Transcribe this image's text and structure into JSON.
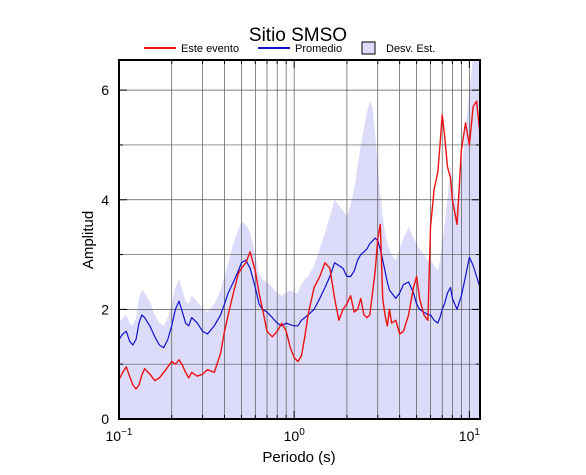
{
  "chart_data": {
    "type": "line",
    "title": "Sitio SMSO",
    "xlabel": "Periodo (s)",
    "ylabel": "Amplitud",
    "xscale": "log",
    "xlim": [
      0.1,
      11.5
    ],
    "ylim": [
      0,
      6.55
    ],
    "grid": true,
    "legend_position": "top",
    "x_tick_labels": [
      {
        "value": 0.1,
        "base": "10",
        "exp": "−1"
      },
      {
        "value": 1,
        "base": "10",
        "exp": "0"
      },
      {
        "value": 10,
        "base": "10",
        "exp": "1"
      }
    ],
    "y_ticks": [
      0,
      2,
      4,
      6
    ],
    "legend": {
      "este_evento": "Este evento",
      "promedio": "Promedio",
      "desv_est": "Desv. Est."
    },
    "colors": {
      "este_evento": "#ee1111",
      "promedio": "#1111cc",
      "desv_band": "#dcdcfa"
    },
    "series": [
      {
        "name": "Este evento",
        "x": [
          0.1,
          0.105,
          0.11,
          0.115,
          0.12,
          0.125,
          0.13,
          0.135,
          0.14,
          0.15,
          0.16,
          0.17,
          0.18,
          0.19,
          0.2,
          0.21,
          0.22,
          0.23,
          0.24,
          0.25,
          0.26,
          0.28,
          0.3,
          0.32,
          0.35,
          0.38,
          0.4,
          0.42,
          0.45,
          0.48,
          0.5,
          0.53,
          0.56,
          0.6,
          0.63,
          0.66,
          0.7,
          0.75,
          0.8,
          0.85,
          0.9,
          0.95,
          1.0,
          1.05,
          1.1,
          1.15,
          1.2,
          1.3,
          1.4,
          1.5,
          1.6,
          1.7,
          1.8,
          1.9,
          2.0,
          2.1,
          2.2,
          2.3,
          2.4,
          2.5,
          2.6,
          2.7,
          2.8,
          2.9,
          3.0,
          3.1,
          3.2,
          3.3,
          3.4,
          3.5,
          3.6,
          3.8,
          4.0,
          4.2,
          4.5,
          4.8,
          5.0,
          5.2,
          5.5,
          5.8,
          6.0,
          6.3,
          6.6,
          6.8,
          7.0,
          7.2,
          7.5,
          7.8,
          8.0,
          8.5,
          9.0,
          9.5,
          10.0,
          10.5,
          11.0,
          11.5
        ],
        "y": [
          0.72,
          0.85,
          0.95,
          0.78,
          0.62,
          0.55,
          0.62,
          0.8,
          0.92,
          0.82,
          0.7,
          0.75,
          0.85,
          0.95,
          1.05,
          1.0,
          1.08,
          0.98,
          0.85,
          0.75,
          0.85,
          0.78,
          0.82,
          0.9,
          0.85,
          1.2,
          1.6,
          1.9,
          2.3,
          2.65,
          2.75,
          2.85,
          3.05,
          2.7,
          2.3,
          2.0,
          1.6,
          1.5,
          1.6,
          1.75,
          1.6,
          1.3,
          1.12,
          1.05,
          1.15,
          1.5,
          1.9,
          2.4,
          2.6,
          2.85,
          2.75,
          2.2,
          1.8,
          2.0,
          2.1,
          2.25,
          1.95,
          2.0,
          2.2,
          1.9,
          1.85,
          1.9,
          2.3,
          2.7,
          3.3,
          3.55,
          2.2,
          1.9,
          1.7,
          2.0,
          1.75,
          1.8,
          1.55,
          1.6,
          1.9,
          2.4,
          2.6,
          2.2,
          1.9,
          1.8,
          3.5,
          4.2,
          4.5,
          5.0,
          5.55,
          5.2,
          4.6,
          4.4,
          4.0,
          3.55,
          4.9,
          5.4,
          5.0,
          5.7,
          5.8,
          5.2
        ]
      },
      {
        "name": "Promedio",
        "x": [
          0.1,
          0.105,
          0.11,
          0.115,
          0.12,
          0.125,
          0.13,
          0.135,
          0.14,
          0.15,
          0.16,
          0.17,
          0.18,
          0.19,
          0.2,
          0.21,
          0.22,
          0.23,
          0.24,
          0.25,
          0.26,
          0.28,
          0.3,
          0.32,
          0.35,
          0.38,
          0.4,
          0.42,
          0.45,
          0.48,
          0.5,
          0.53,
          0.56,
          0.6,
          0.63,
          0.66,
          0.7,
          0.75,
          0.8,
          0.85,
          0.9,
          0.95,
          1.0,
          1.05,
          1.1,
          1.15,
          1.2,
          1.3,
          1.4,
          1.5,
          1.6,
          1.7,
          1.8,
          1.9,
          2.0,
          2.1,
          2.2,
          2.3,
          2.4,
          2.5,
          2.6,
          2.7,
          2.8,
          2.9,
          3.0,
          3.1,
          3.2,
          3.3,
          3.4,
          3.5,
          3.6,
          3.8,
          4.0,
          4.2,
          4.5,
          4.8,
          5.0,
          5.2,
          5.5,
          5.8,
          6.0,
          6.3,
          6.6,
          6.8,
          7.0,
          7.2,
          7.5,
          7.8,
          8.0,
          8.5,
          9.0,
          9.5,
          10.0,
          10.5,
          11.0,
          11.5
        ],
        "y": [
          1.45,
          1.55,
          1.6,
          1.42,
          1.35,
          1.45,
          1.75,
          1.9,
          1.85,
          1.7,
          1.5,
          1.35,
          1.3,
          1.45,
          1.7,
          2.0,
          2.15,
          1.95,
          1.75,
          1.7,
          1.85,
          1.75,
          1.6,
          1.55,
          1.7,
          1.9,
          2.1,
          2.3,
          2.5,
          2.7,
          2.85,
          2.9,
          2.75,
          2.4,
          2.1,
          2.0,
          1.95,
          1.85,
          1.75,
          1.7,
          1.75,
          1.72,
          1.7,
          1.7,
          1.8,
          1.85,
          1.9,
          2.0,
          2.2,
          2.4,
          2.6,
          2.85,
          2.8,
          2.75,
          2.6,
          2.6,
          2.7,
          2.9,
          3.0,
          3.05,
          3.1,
          3.2,
          3.25,
          3.3,
          3.25,
          3.1,
          2.9,
          2.7,
          2.5,
          2.35,
          2.3,
          2.2,
          2.3,
          2.45,
          2.5,
          2.3,
          2.1,
          2.0,
          1.95,
          1.9,
          1.9,
          1.8,
          1.75,
          1.85,
          2.0,
          2.1,
          2.3,
          2.4,
          2.2,
          2.0,
          2.25,
          2.6,
          2.95,
          2.8,
          2.6,
          2.4
        ]
      }
    ],
    "band": {
      "name": "Desv. Est.",
      "x": [
        0.1,
        0.105,
        0.11,
        0.115,
        0.12,
        0.125,
        0.13,
        0.135,
        0.14,
        0.15,
        0.16,
        0.17,
        0.18,
        0.19,
        0.2,
        0.21,
        0.22,
        0.23,
        0.24,
        0.25,
        0.26,
        0.28,
        0.3,
        0.32,
        0.35,
        0.38,
        0.4,
        0.42,
        0.45,
        0.48,
        0.5,
        0.53,
        0.56,
        0.6,
        0.63,
        0.66,
        0.7,
        0.75,
        0.8,
        0.85,
        0.9,
        0.95,
        1.0,
        1.05,
        1.1,
        1.15,
        1.2,
        1.3,
        1.4,
        1.5,
        1.6,
        1.7,
        1.8,
        1.9,
        2.0,
        2.1,
        2.2,
        2.3,
        2.4,
        2.5,
        2.6,
        2.7,
        2.8,
        2.9,
        3.0,
        3.1,
        3.2,
        3.3,
        3.4,
        3.5,
        3.6,
        3.8,
        4.0,
        4.2,
        4.5,
        4.8,
        5.0,
        5.2,
        5.5,
        5.8,
        6.0,
        6.3,
        6.6,
        6.8,
        7.0,
        7.2,
        7.5,
        7.8,
        8.0,
        8.5,
        9.0,
        9.5,
        10.0,
        10.5,
        11.0,
        11.5
      ],
      "upper": [
        1.75,
        1.85,
        1.9,
        1.75,
        1.7,
        1.85,
        2.2,
        2.35,
        2.3,
        2.15,
        1.9,
        1.75,
        1.7,
        1.85,
        2.1,
        2.4,
        2.55,
        2.35,
        2.15,
        2.1,
        2.25,
        2.15,
        2.0,
        1.95,
        2.1,
        2.35,
        2.6,
        2.85,
        3.2,
        3.45,
        3.6,
        3.55,
        3.4,
        3.0,
        2.65,
        2.55,
        2.5,
        2.4,
        2.3,
        2.25,
        2.3,
        2.35,
        2.3,
        2.3,
        2.45,
        2.55,
        2.6,
        2.8,
        3.1,
        3.4,
        3.7,
        4.0,
        3.9,
        3.8,
        3.7,
        3.9,
        4.2,
        4.6,
        5.0,
        5.3,
        5.6,
        5.8,
        5.7,
        5.2,
        4.6,
        4.1,
        3.7,
        3.4,
        3.2,
        3.1,
        3.0,
        2.9,
        3.1,
        3.3,
        3.5,
        3.3,
        3.2,
        3.1,
        3.0,
        2.9,
        2.9,
        2.8,
        2.7,
        2.9,
        3.2,
        3.5,
        4.0,
        4.6,
        4.3,
        3.9,
        4.5,
        5.3,
        6.0,
        6.6,
        6.6,
        6.5
      ]
    }
  }
}
